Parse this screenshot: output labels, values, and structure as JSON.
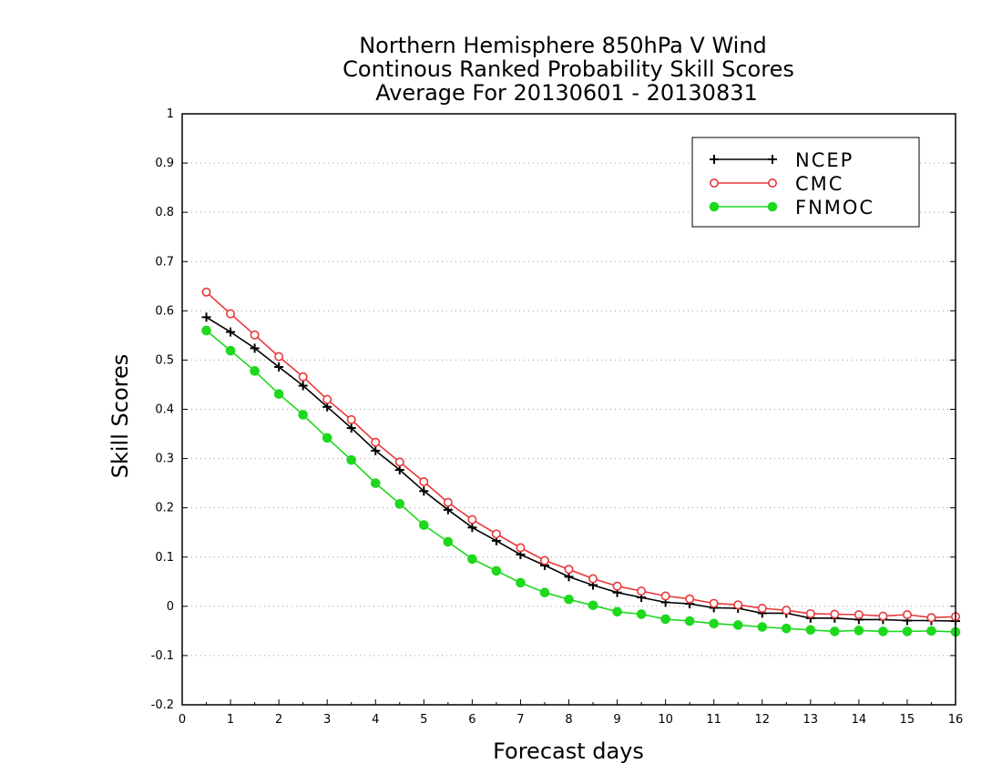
{
  "chart_data": {
    "type": "line",
    "title": [
      "Northern Hemisphere 850hPa V Wind",
      "Continous Ranked Probability Skill Scores",
      "Average For 20130601 - 20130831"
    ],
    "xlabel": "Forecast days",
    "ylabel": "Skill Scores",
    "xlim": [
      0,
      16
    ],
    "ylim": [
      -0.2,
      1
    ],
    "xticks": [
      "0",
      "1",
      "2",
      "3",
      "4",
      "5",
      "6",
      "7",
      "8",
      "9",
      "10",
      "11",
      "12",
      "13",
      "14",
      "15",
      "16"
    ],
    "yticks": [
      "-0.2",
      "-0.1",
      "0",
      "0.1",
      "0.2",
      "0.3",
      "0.4",
      "0.5",
      "0.6",
      "0.7",
      "0.8",
      "0.9",
      "1"
    ],
    "grid": "horizontal dotted",
    "legend_position": "top-right",
    "x": [
      0.5,
      1,
      1.5,
      2,
      2.5,
      3,
      3.5,
      4,
      4.5,
      5,
      5.5,
      6,
      6.5,
      7,
      7.5,
      8,
      8.5,
      9,
      9.5,
      10,
      10.5,
      11,
      11.5,
      12,
      12.5,
      13,
      13.5,
      14,
      14.5,
      15,
      15.5,
      16
    ],
    "series": [
      {
        "name": "NCEP",
        "color": "#000000",
        "marker": "plus",
        "values": [
          0.587,
          0.557,
          0.524,
          0.486,
          0.448,
          0.405,
          0.362,
          0.316,
          0.277,
          0.234,
          0.196,
          0.16,
          0.133,
          0.105,
          0.083,
          0.06,
          0.043,
          0.028,
          0.018,
          0.008,
          0.005,
          -0.003,
          -0.004,
          -0.014,
          -0.014,
          -0.024,
          -0.024,
          -0.027,
          -0.027,
          -0.029,
          -0.029,
          -0.03
        ]
      },
      {
        "name": "CMC",
        "color": "#e8373a",
        "marker": "open-circle",
        "values": [
          0.638,
          0.594,
          0.551,
          0.507,
          0.466,
          0.42,
          0.379,
          0.333,
          0.293,
          0.253,
          0.211,
          0.176,
          0.147,
          0.119,
          0.093,
          0.075,
          0.056,
          0.041,
          0.031,
          0.021,
          0.015,
          0.006,
          0.003,
          -0.004,
          -0.008,
          -0.015,
          -0.016,
          -0.017,
          -0.02,
          -0.017,
          -0.023,
          -0.021
        ]
      },
      {
        "name": "FNMOC",
        "color": "#1ed81e",
        "marker": "filled-circle",
        "values": [
          0.56,
          0.519,
          0.478,
          0.431,
          0.389,
          0.342,
          0.297,
          0.25,
          0.208,
          0.165,
          0.131,
          0.096,
          0.072,
          0.048,
          0.028,
          0.014,
          0.002,
          -0.011,
          -0.016,
          -0.026,
          -0.03,
          -0.035,
          -0.038,
          -0.042,
          -0.045,
          -0.048,
          -0.051,
          -0.049,
          -0.051,
          -0.051,
          -0.05,
          -0.052
        ]
      }
    ]
  }
}
